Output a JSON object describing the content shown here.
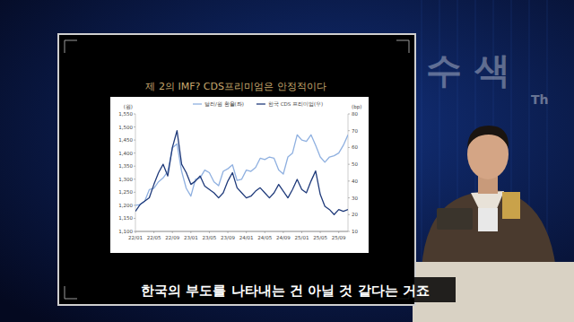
{
  "caption": "한국의 부도를 나타내는 건 아닐 것 같다는 거죠",
  "background_text": [
    "수 색",
    "Th"
  ],
  "chart_data": {
    "type": "line",
    "title": "제 2의 IMF? CDS프리미엄은 안정적이다",
    "y_label": "(원)",
    "y2_label": "(bp)",
    "categories": [
      "22/01",
      null,
      null,
      null,
      "22/05",
      null,
      null,
      null,
      "22/09",
      null,
      null,
      null,
      "23/01",
      null,
      null,
      null,
      "23/05",
      null,
      null,
      null,
      "23/09",
      null,
      null,
      null,
      "24/01",
      null,
      null,
      null,
      "24/05",
      null,
      null,
      null,
      "24/09",
      null,
      null,
      null,
      "25/01",
      null,
      null,
      null,
      "25/05",
      null,
      null,
      null,
      "25/09",
      null,
      null
    ],
    "series": [
      {
        "name": "달러/원 환율(좌)",
        "color": "#8fb0e0",
        "values": [
          1200,
          1203,
          1215,
          1260,
          1265,
          1290,
          1305,
          1330,
          1420,
          1435,
          1330,
          1265,
          1235,
          1300,
          1305,
          1335,
          1325,
          1290,
          1275,
          1330,
          1340,
          1355,
          1295,
          1300,
          1335,
          1330,
          1345,
          1380,
          1375,
          1385,
          1380,
          1335,
          1320,
          1385,
          1400,
          1470,
          1450,
          1445,
          1470,
          1430,
          1385,
          1365,
          1385,
          1390,
          1400,
          1430,
          1470
        ]
      },
      {
        "name": "한국 CDS 프리미엄(우)",
        "color": "#1f3a7a",
        "axis": "y2",
        "values": [
          22,
          26,
          28,
          30,
          38,
          45,
          50,
          43,
          60,
          70,
          50,
          45,
          38,
          40,
          43,
          37,
          35,
          33,
          30,
          33,
          40,
          45,
          36,
          33,
          30,
          31,
          34,
          36,
          33,
          30,
          33,
          38,
          34,
          30,
          35,
          41,
          35,
          33,
          40,
          46,
          32,
          25,
          23,
          20,
          23,
          22,
          23
        ]
      }
    ],
    "ylim": [
      1100,
      1550
    ],
    "yticks": [
      {
        "value": 1100,
        "label": "1,100"
      },
      {
        "value": 1150,
        "label": "1,150"
      },
      {
        "value": 1200,
        "label": "1,200"
      },
      {
        "value": 1250,
        "label": "1,250"
      },
      {
        "value": 1300,
        "label": "1,300"
      },
      {
        "value": 1350,
        "label": "1,350"
      },
      {
        "value": 1400,
        "label": "1,400"
      },
      {
        "value": 1450,
        "label": "1,450"
      },
      {
        "value": 1500,
        "label": "1,500"
      },
      {
        "value": 1550,
        "label": "1,550"
      }
    ],
    "y2lim": [
      10,
      80
    ],
    "y2ticks": [
      10,
      20,
      30,
      40,
      50,
      60,
      70,
      80
    ],
    "grid": false,
    "legend": "top"
  }
}
